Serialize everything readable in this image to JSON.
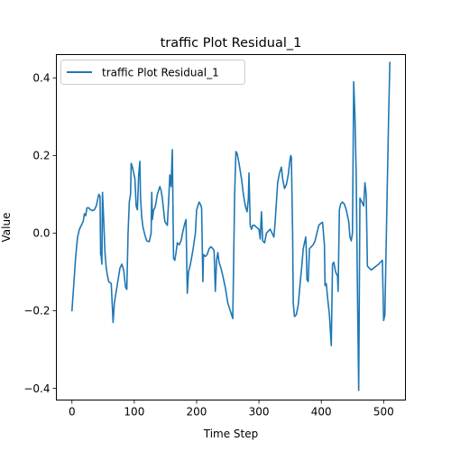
{
  "chart_data": {
    "type": "line",
    "title": "traffic Plot Residual_1",
    "xlabel": "Time Step",
    "ylabel": "Value",
    "xlim": [
      -25,
      535
    ],
    "ylim": [
      -0.43,
      0.46
    ],
    "xticks": [
      0,
      100,
      200,
      300,
      400,
      500
    ],
    "yticks": [
      -0.4,
      -0.2,
      0.0,
      0.2,
      0.4
    ],
    "ytick_labels": [
      "−0.4",
      "−0.2",
      "0.0",
      "0.2",
      "0.4"
    ],
    "grid": false,
    "legend_position": "top-left",
    "color": "#1f77b4",
    "series": [
      {
        "name": "traffic Plot Residual_1",
        "points": [
          [
            0,
            -0.2
          ],
          [
            3,
            -0.13
          ],
          [
            6,
            -0.06
          ],
          [
            9,
            -0.01
          ],
          [
            12,
            0.01
          ],
          [
            15,
            0.02
          ],
          [
            18,
            0.03
          ],
          [
            20,
            0.05
          ],
          [
            22,
            0.045
          ],
          [
            24,
            0.065
          ],
          [
            27,
            0.065
          ],
          [
            30,
            0.06
          ],
          [
            33,
            0.058
          ],
          [
            36,
            0.06
          ],
          [
            39,
            0.07
          ],
          [
            41,
            0.085
          ],
          [
            43,
            0.1
          ],
          [
            45,
            0.095
          ],
          [
            46,
            -0.055
          ],
          [
            47,
            -0.06
          ],
          [
            48,
            -0.08
          ],
          [
            49,
            0.105
          ],
          [
            51,
            0.03
          ],
          [
            53,
            -0.05
          ],
          [
            55,
            -0.09
          ],
          [
            57,
            -0.11
          ],
          [
            59,
            -0.125
          ],
          [
            63,
            -0.13
          ],
          [
            66,
            -0.23
          ],
          [
            68,
            -0.18
          ],
          [
            71,
            -0.15
          ],
          [
            74,
            -0.12
          ],
          [
            77,
            -0.09
          ],
          [
            80,
            -0.08
          ],
          [
            83,
            -0.095
          ],
          [
            86,
            -0.14
          ],
          [
            88,
            -0.145
          ],
          [
            90,
            0.0
          ],
          [
            92,
            0.08
          ],
          [
            94,
            0.1
          ],
          [
            95,
            0.18
          ],
          [
            97,
            0.17
          ],
          [
            99,
            0.155
          ],
          [
            101,
            0.14
          ],
          [
            103,
            0.07
          ],
          [
            105,
            0.06
          ],
          [
            107,
            0.15
          ],
          [
            109,
            0.185
          ],
          [
            110,
            0.09
          ],
          [
            112,
            0.04
          ],
          [
            114,
            0.015
          ],
          [
            117,
            -0.005
          ],
          [
            120,
            -0.02
          ],
          [
            124,
            -0.022
          ],
          [
            127,
            0.0
          ],
          [
            128,
            0.105
          ],
          [
            129,
            0.035
          ],
          [
            131,
            0.06
          ],
          [
            133,
            0.065
          ],
          [
            135,
            0.08
          ],
          [
            137,
            0.1
          ],
          [
            139,
            0.11
          ],
          [
            141,
            0.12
          ],
          [
            143,
            0.11
          ],
          [
            145,
            0.09
          ],
          [
            147,
            0.06
          ],
          [
            149,
            0.03
          ],
          [
            151,
            0.025
          ],
          [
            153,
            0.02
          ],
          [
            155,
            0.08
          ],
          [
            157,
            0.15
          ],
          [
            159,
            0.12
          ],
          [
            161,
            0.215
          ],
          [
            163,
            -0.065
          ],
          [
            165,
            -0.07
          ],
          [
            167,
            -0.05
          ],
          [
            169,
            -0.025
          ],
          [
            172,
            -0.03
          ],
          [
            175,
            -0.02
          ],
          [
            178,
            0.005
          ],
          [
            181,
            0.025
          ],
          [
            183,
            0.035
          ],
          [
            185,
            -0.155
          ],
          [
            187,
            -0.1
          ],
          [
            190,
            -0.08
          ],
          [
            194,
            -0.045
          ],
          [
            198,
            0.0
          ],
          [
            200,
            0.06
          ],
          [
            202,
            0.07
          ],
          [
            204,
            0.08
          ],
          [
            206,
            0.075
          ],
          [
            208,
            0.065
          ],
          [
            210,
            -0.125
          ],
          [
            211,
            -0.055
          ],
          [
            214,
            -0.06
          ],
          [
            217,
            -0.055
          ],
          [
            220,
            -0.04
          ],
          [
            223,
            -0.035
          ],
          [
            226,
            -0.04
          ],
          [
            228,
            -0.045
          ],
          [
            230,
            -0.15
          ],
          [
            232,
            -0.07
          ],
          [
            234,
            -0.05
          ],
          [
            236,
            -0.075
          ],
          [
            239,
            -0.09
          ],
          [
            242,
            -0.11
          ],
          [
            246,
            -0.14
          ],
          [
            250,
            -0.18
          ],
          [
            254,
            -0.2
          ],
          [
            258,
            -0.22
          ],
          [
            261,
            0.1
          ],
          [
            263,
            0.21
          ],
          [
            265,
            0.205
          ],
          [
            268,
            0.18
          ],
          [
            272,
            0.14
          ],
          [
            275,
            0.1
          ],
          [
            277,
            0.08
          ],
          [
            279,
            0.065
          ],
          [
            281,
            0.055
          ],
          [
            283,
            0.09
          ],
          [
            284,
            0.155
          ],
          [
            286,
            0.02
          ],
          [
            288,
            0.01
          ],
          [
            290,
            0.02
          ],
          [
            293,
            0.02
          ],
          [
            296,
            0.015
          ],
          [
            300,
            0.01
          ],
          [
            302,
            -0.015
          ],
          [
            304,
            0.055
          ],
          [
            306,
            -0.02
          ],
          [
            309,
            -0.025
          ],
          [
            312,
            0.0
          ],
          [
            315,
            0.005
          ],
          [
            318,
            0.01
          ],
          [
            321,
            0.0
          ],
          [
            324,
            -0.01
          ],
          [
            326,
            0.03
          ],
          [
            328,
            0.08
          ],
          [
            330,
            0.13
          ],
          [
            333,
            0.155
          ],
          [
            336,
            0.17
          ],
          [
            338,
            0.14
          ],
          [
            341,
            0.115
          ],
          [
            344,
            0.125
          ],
          [
            347,
            0.15
          ],
          [
            349,
            0.18
          ],
          [
            351,
            0.2
          ],
          [
            352,
            0.195
          ],
          [
            354,
            0.0
          ],
          [
            355,
            -0.18
          ],
          [
            357,
            -0.215
          ],
          [
            360,
            -0.21
          ],
          [
            363,
            -0.185
          ],
          [
            366,
            -0.13
          ],
          [
            369,
            -0.08
          ],
          [
            371,
            -0.04
          ],
          [
            373,
            -0.025
          ],
          [
            375,
            -0.01
          ],
          [
            376,
            -0.045
          ],
          [
            377,
            -0.12
          ],
          [
            379,
            -0.125
          ],
          [
            381,
            -0.04
          ],
          [
            384,
            -0.035
          ],
          [
            387,
            -0.03
          ],
          [
            390,
            -0.02
          ],
          [
            393,
            0.0
          ],
          [
            396,
            0.02
          ],
          [
            399,
            0.025
          ],
          [
            402,
            0.028
          ],
          [
            405,
            -0.03
          ],
          [
            406,
            -0.135
          ],
          [
            408,
            -0.13
          ],
          [
            410,
            -0.165
          ],
          [
            413,
            -0.21
          ],
          [
            416,
            -0.29
          ],
          [
            418,
            -0.08
          ],
          [
            420,
            -0.075
          ],
          [
            423,
            -0.1
          ],
          [
            426,
            -0.11
          ],
          [
            427,
            -0.15
          ],
          [
            429,
            0.06
          ],
          [
            431,
            0.075
          ],
          [
            434,
            0.08
          ],
          [
            437,
            0.075
          ],
          [
            440,
            0.06
          ],
          [
            442,
            0.045
          ],
          [
            444,
            0.03
          ],
          [
            446,
            -0.01
          ],
          [
            448,
            -0.02
          ],
          [
            450,
            0.0
          ],
          [
            452,
            0.39
          ],
          [
            454,
            0.3
          ],
          [
            456,
            0.15
          ],
          [
            458,
            -0.15
          ],
          [
            460,
            -0.405
          ],
          [
            462,
            0.09
          ],
          [
            465,
            0.08
          ],
          [
            468,
            0.07
          ],
          [
            470,
            0.13
          ],
          [
            472,
            0.1
          ],
          [
            474,
            -0.085
          ],
          [
            477,
            -0.09
          ],
          [
            480,
            -0.095
          ],
          [
            484,
            -0.09
          ],
          [
            488,
            -0.085
          ],
          [
            492,
            -0.08
          ],
          [
            495,
            -0.075
          ],
          [
            498,
            -0.07
          ],
          [
            500,
            -0.225
          ],
          [
            502,
            -0.21
          ],
          [
            505,
            0.05
          ],
          [
            508,
            0.3
          ],
          [
            510,
            0.44
          ]
        ]
      }
    ]
  }
}
